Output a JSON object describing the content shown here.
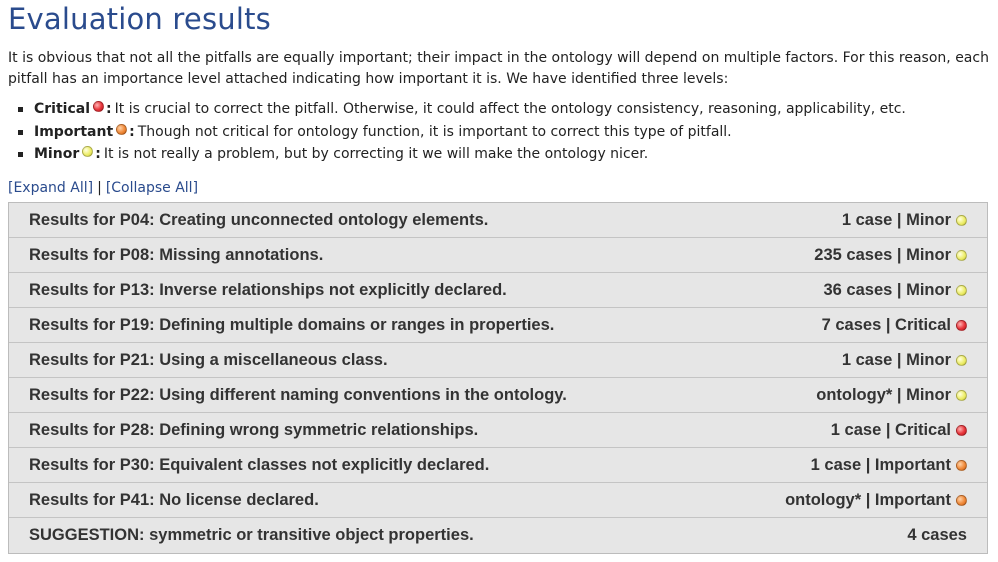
{
  "page": {
    "title": "Evaluation results",
    "intro": "It is obvious that not all the pitfalls are equally important; their impact in the ontology will depend on multiple factors. For this reason, each pitfall has an importance level attached indicating how important it is. We have identified three levels:"
  },
  "levels": [
    {
      "name": "Critical",
      "icon": "red-dot-icon",
      "description": "It is crucial to correct the pitfall. Otherwise, it could affect the ontology consistency, reasoning, applicability, etc."
    },
    {
      "name": "Important",
      "icon": "orange-dot-icon",
      "description": "Though not critical for ontology function, it is important to correct this type of pitfall."
    },
    {
      "name": "Minor",
      "icon": "yellow-dot-icon",
      "description": "It is not really a problem, but by correcting it we will make the ontology nicer."
    }
  ],
  "controls": {
    "expand_all": "[Expand All]",
    "separator": "|",
    "collapse_all": "[Collapse All]"
  },
  "colors": {
    "title": "#2a4b8d",
    "row_background": "#e6e6e6",
    "critical": "#e8343a",
    "important": "#f08a3a",
    "minor": "#eeee6a"
  },
  "results": [
    {
      "title": "Results for P04: Creating unconnected ontology elements.",
      "summary": "1 case | Minor",
      "level": "minor"
    },
    {
      "title": "Results for P08: Missing annotations.",
      "summary": "235 cases | Minor",
      "level": "minor"
    },
    {
      "title": "Results for P13: Inverse relationships not explicitly declared.",
      "summary": "36 cases | Minor",
      "level": "minor"
    },
    {
      "title": "Results for P19: Defining multiple domains or ranges in properties.",
      "summary": "7 cases | Critical",
      "level": "critical"
    },
    {
      "title": "Results for P21: Using a miscellaneous class.",
      "summary": "1 case | Minor",
      "level": "minor"
    },
    {
      "title": "Results for P22: Using different naming conventions in the ontology.",
      "summary": "ontology* | Minor",
      "level": "minor"
    },
    {
      "title": "Results for P28: Defining wrong symmetric relationships.",
      "summary": "1 case | Critical",
      "level": "critical"
    },
    {
      "title": "Results for P30: Equivalent classes not explicitly declared.",
      "summary": "1 case | Important",
      "level": "important"
    },
    {
      "title": "Results for P41: No license declared.",
      "summary": "ontology* | Important",
      "level": "important"
    },
    {
      "title": "SUGGESTION: symmetric or transitive object properties.",
      "summary": "4 cases",
      "level": ""
    }
  ]
}
